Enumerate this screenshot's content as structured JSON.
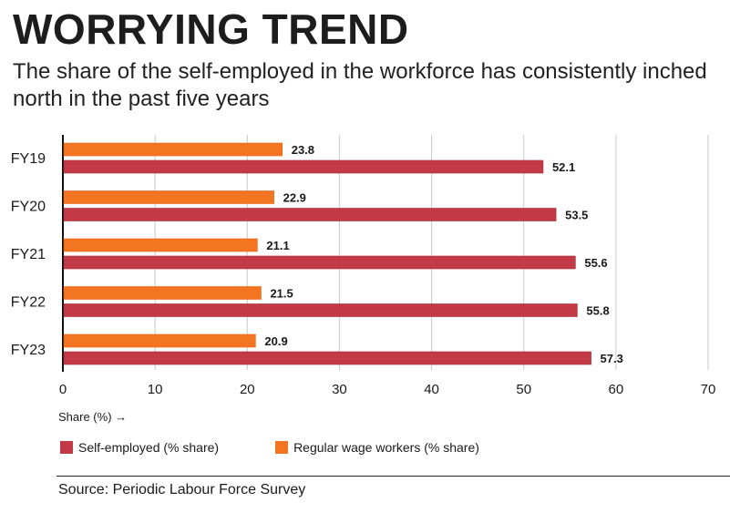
{
  "header": {
    "title": "WORRYING TREND",
    "subtitle": "The share of the self-employed in the workforce has consistently inched north in the past five years"
  },
  "footer": {
    "source": "Source: Periodic Labour Force Survey"
  },
  "colors": {
    "self_employed": "#c23a45",
    "regular_wage": "#f47521",
    "grid": "#c8c8c8",
    "axis": "#111111"
  },
  "chart_data": {
    "type": "bar",
    "orientation": "horizontal",
    "title": "WORRYING TREND",
    "subtitle": "The share of the self-employed in the workforce has consistently inched north in the past five years",
    "categories": [
      "FY19",
      "FY20",
      "FY21",
      "FY22",
      "FY23"
    ],
    "series": [
      {
        "name": "Regular wage workers (% share)",
        "key": "regular_wage",
        "values": [
          23.8,
          22.9,
          21.1,
          21.5,
          20.9
        ]
      },
      {
        "name": "Self-employed (% share)",
        "key": "self_employed",
        "values": [
          52.1,
          53.5,
          55.6,
          55.8,
          57.3
        ]
      }
    ],
    "xlabel": "Share (%) →",
    "ylabel": "",
    "xlim": [
      0,
      70
    ],
    "xticks": [
      0,
      10,
      20,
      30,
      40,
      50,
      60,
      70
    ],
    "grid": true,
    "data_labels": true,
    "legend": {
      "placement": "bottom-left",
      "entries": [
        "Self-employed (% share)",
        "Regular wage workers (% share)"
      ]
    }
  }
}
